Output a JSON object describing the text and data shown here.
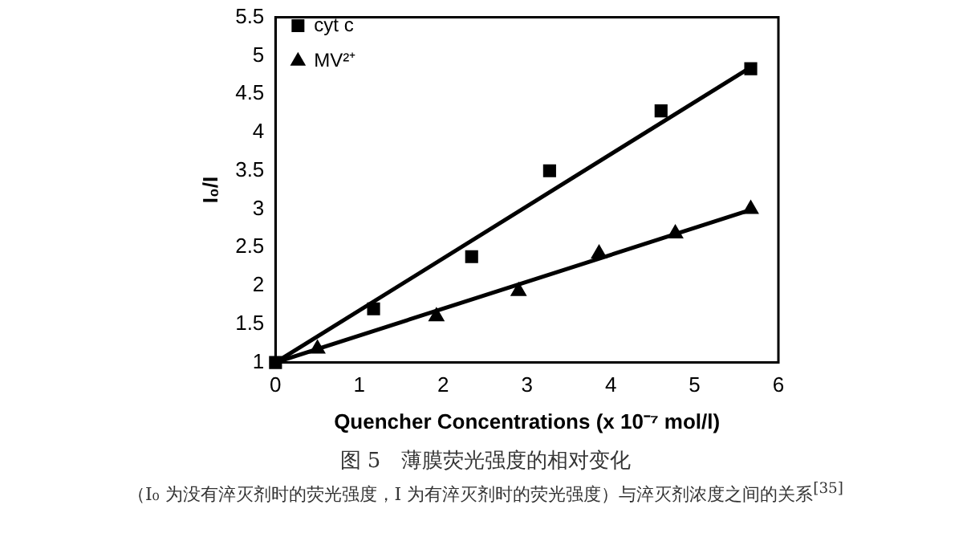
{
  "chart_data": {
    "type": "scatter",
    "xlabel": "Quencher Concentrations (x 10⁻⁷ mol/l)",
    "ylabel": "I₀/I",
    "xlim": [
      0,
      6
    ],
    "xticks": [
      0,
      1,
      2,
      3,
      4,
      5,
      6
    ],
    "ylim": [
      1,
      5.5
    ],
    "yticks": [
      1,
      1.5,
      2,
      2.5,
      3,
      3.5,
      4,
      4.5,
      5,
      5.5
    ],
    "grid": false,
    "legend": "top left",
    "series": [
      {
        "name": "cyt c",
        "type": "scatter",
        "marker": "square",
        "color": "#000000",
        "x": [
          0,
          1.17,
          2.34,
          3.27,
          4.6,
          5.67
        ],
        "values": [
          1,
          1.7,
          2.38,
          3.5,
          4.28,
          4.83
        ]
      },
      {
        "name": "MV²⁺",
        "type": "scatter",
        "marker": "triangle",
        "color": "#000000",
        "x": [
          0.5,
          1.92,
          2.9,
          3.86,
          4.77,
          5.67
        ],
        "values": [
          1.18,
          1.6,
          1.93,
          2.42,
          2.68,
          3.0
        ]
      },
      {
        "type": "line",
        "marker": "none",
        "color": "#000000",
        "x": [
          0,
          5.7
        ],
        "values": [
          1,
          4.87
        ]
      },
      {
        "type": "line",
        "marker": "none",
        "color": "#000000",
        "x": [
          0,
          5.7
        ],
        "values": [
          1,
          3.0
        ]
      }
    ],
    "annotations": [
      "图 5　薄膜荧光强度的相对变化",
      "（I₀ 为没有淬灭剂时的荧光强度，I 为有淬灭剂时的荧光强度）与淬灭剂浓度之间的关系$^{[35]}$"
    ]
  }
}
